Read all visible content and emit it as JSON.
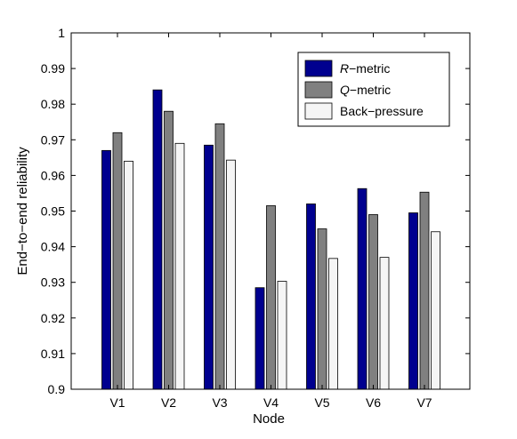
{
  "chart_data": {
    "type": "bar",
    "title": "",
    "xlabel": "Node",
    "ylabel": "End−to−end reliability",
    "categories": [
      "V1",
      "V2",
      "V3",
      "V4",
      "V5",
      "V6",
      "V7"
    ],
    "ylim": [
      0.9,
      1.0
    ],
    "yticks": [
      0.9,
      0.91,
      0.92,
      0.93,
      0.94,
      0.95,
      0.96,
      0.97,
      0.98,
      0.99,
      1
    ],
    "ytick_labels": [
      "0.9",
      "0.91",
      "0.92",
      "0.93",
      "0.94",
      "0.95",
      "0.96",
      "0.97",
      "0.98",
      "0.99",
      "1"
    ],
    "grid": false,
    "legend_position": "top-right",
    "series": [
      {
        "name_italic": "R",
        "name_rest": "−metric",
        "color": "#00008f",
        "values": [
          0.967,
          0.984,
          0.9685,
          0.9285,
          0.952,
          0.9563,
          0.9495
        ]
      },
      {
        "name_italic": "Q",
        "name_rest": "−metric",
        "color": "#808080",
        "values": [
          0.972,
          0.978,
          0.9745,
          0.9515,
          0.945,
          0.949,
          0.9553
        ]
      },
      {
        "name_italic": "",
        "name_rest": "Back−pressure",
        "color": "#f5f5f5",
        "values": [
          0.964,
          0.969,
          0.9643,
          0.9303,
          0.9367,
          0.937,
          0.9442
        ]
      }
    ]
  }
}
